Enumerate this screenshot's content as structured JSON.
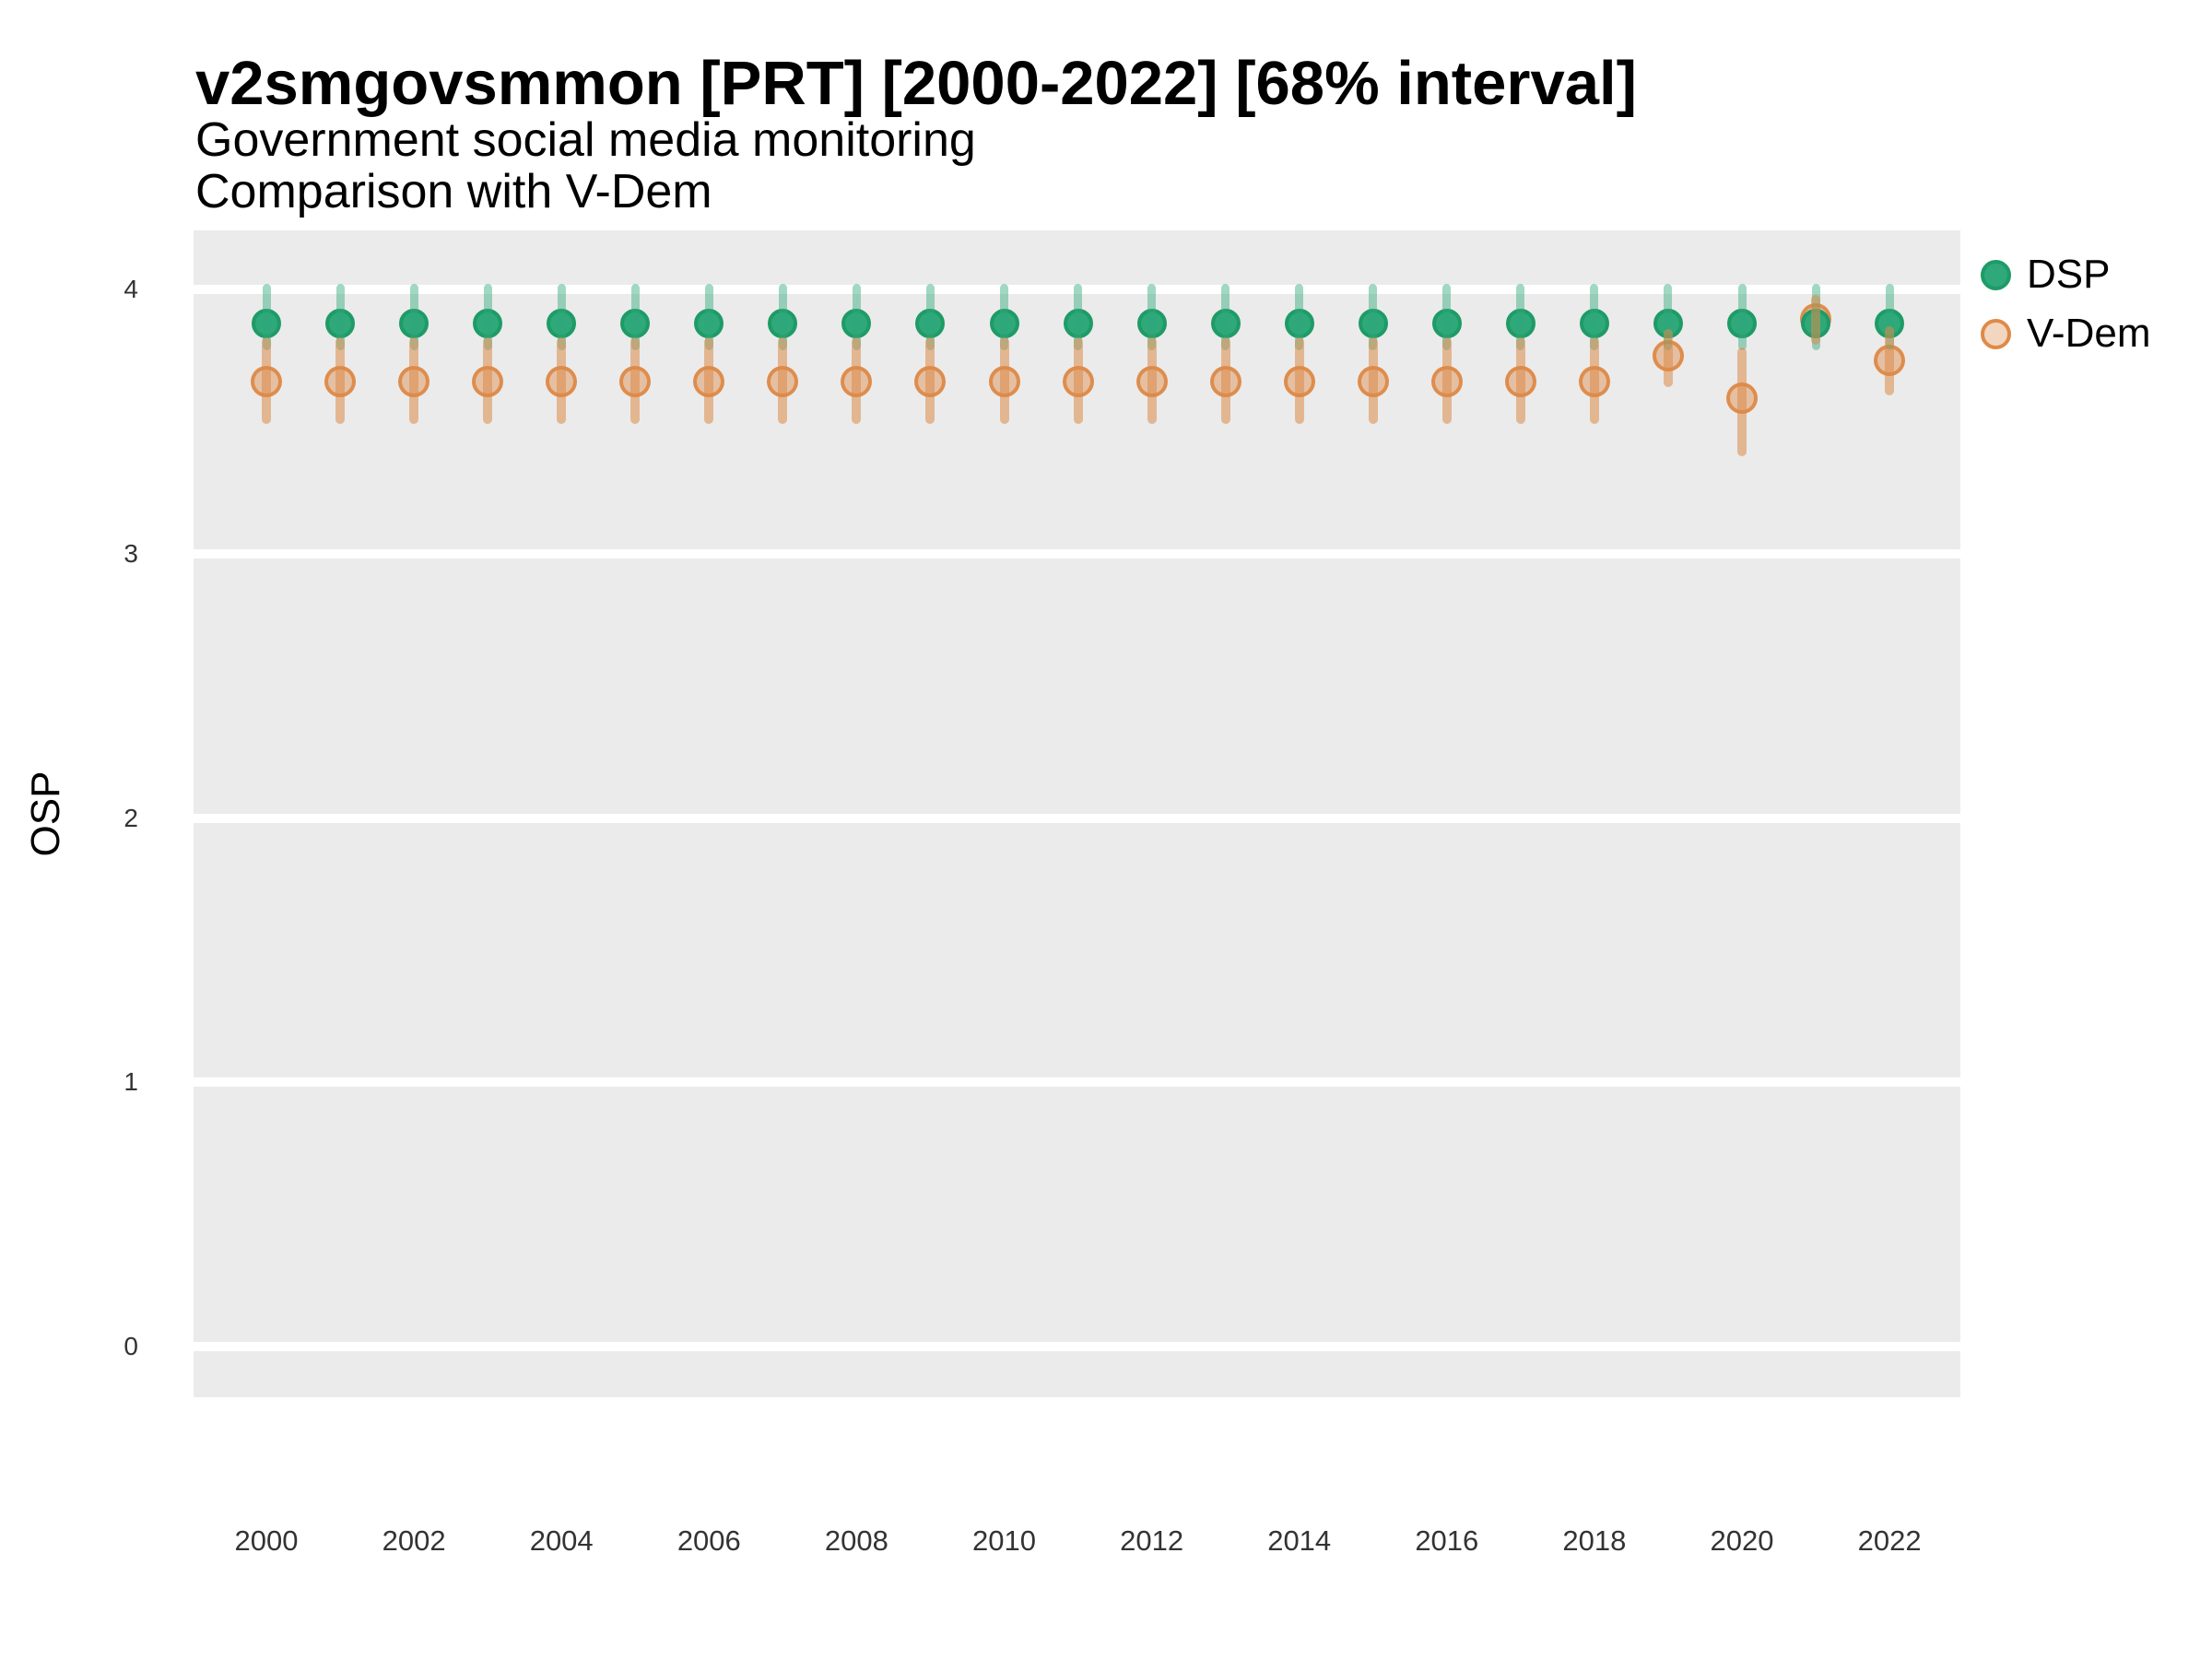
{
  "title": "v2smgovsmmon [PRT] [2000-2022] [68% interval]",
  "subtitle": "Government social media monitoring",
  "subtitle2": "Comparison with V-Dem",
  "ylabel": "OSP",
  "legend": {
    "position": "right-top",
    "items": [
      {
        "label": "DSP",
        "color": "#2fa87a"
      },
      {
        "label": "V-Dem",
        "color": "#df8a48"
      }
    ]
  },
  "colors": {
    "panel_bg": "#ebebeb",
    "gridline": "#ffffff",
    "dsp_fill": "#2fa87a",
    "dsp_ring": "#1e9b67",
    "dsp_bar": "rgba(47,168,122,0.45)",
    "vdem_base": "#dd8a49",
    "vdem_fill": "rgba(221,138,73,0.45)",
    "vdem_ring": "rgba(221,138,73,0.95)",
    "vdem_bar": "rgba(221,138,73,0.55)"
  },
  "chart_data": {
    "type": "scatter",
    "subtype": "pointrange",
    "interval": "68%",
    "title": "v2smgovsmmon [PRT] [2000-2022] [68% interval]",
    "subtitle": "Government social media monitoring",
    "subtitle2": "Comparison with V-Dem",
    "xlabel": "",
    "ylabel": "OSP",
    "grid": "on",
    "legend_position": "right-top",
    "x": [
      2000,
      2001,
      2002,
      2003,
      2004,
      2005,
      2006,
      2007,
      2008,
      2009,
      2010,
      2011,
      2012,
      2013,
      2014,
      2015,
      2016,
      2017,
      2018,
      2019,
      2020,
      2021,
      2022
    ],
    "x_tick_labels": [
      "2000",
      "2002",
      "2004",
      "2006",
      "2008",
      "2010",
      "2012",
      "2014",
      "2016",
      "2018",
      "2020",
      "2022"
    ],
    "y_ticks": [
      0,
      1,
      2,
      3,
      4
    ],
    "ylim": [
      -0.2,
      4.22
    ],
    "series": [
      {
        "name": "DSP",
        "points": [
          {
            "year": 2000,
            "est": 3.87,
            "lo": 3.77,
            "hi": 4.02
          },
          {
            "year": 2001,
            "est": 3.87,
            "lo": 3.77,
            "hi": 4.02
          },
          {
            "year": 2002,
            "est": 3.87,
            "lo": 3.77,
            "hi": 4.02
          },
          {
            "year": 2003,
            "est": 3.87,
            "lo": 3.77,
            "hi": 4.02
          },
          {
            "year": 2004,
            "est": 3.87,
            "lo": 3.77,
            "hi": 4.02
          },
          {
            "year": 2005,
            "est": 3.87,
            "lo": 3.77,
            "hi": 4.02
          },
          {
            "year": 2006,
            "est": 3.87,
            "lo": 3.77,
            "hi": 4.02
          },
          {
            "year": 2007,
            "est": 3.87,
            "lo": 3.77,
            "hi": 4.02
          },
          {
            "year": 2008,
            "est": 3.87,
            "lo": 3.77,
            "hi": 4.02
          },
          {
            "year": 2009,
            "est": 3.87,
            "lo": 3.77,
            "hi": 4.02
          },
          {
            "year": 2010,
            "est": 3.87,
            "lo": 3.77,
            "hi": 4.02
          },
          {
            "year": 2011,
            "est": 3.87,
            "lo": 3.77,
            "hi": 4.02
          },
          {
            "year": 2012,
            "est": 3.87,
            "lo": 3.77,
            "hi": 4.02
          },
          {
            "year": 2013,
            "est": 3.87,
            "lo": 3.77,
            "hi": 4.02
          },
          {
            "year": 2014,
            "est": 3.87,
            "lo": 3.77,
            "hi": 4.02
          },
          {
            "year": 2015,
            "est": 3.87,
            "lo": 3.77,
            "hi": 4.02
          },
          {
            "year": 2016,
            "est": 3.87,
            "lo": 3.77,
            "hi": 4.02
          },
          {
            "year": 2017,
            "est": 3.87,
            "lo": 3.77,
            "hi": 4.02
          },
          {
            "year": 2018,
            "est": 3.87,
            "lo": 3.77,
            "hi": 4.02
          },
          {
            "year": 2019,
            "est": 3.87,
            "lo": 3.77,
            "hi": 4.02
          },
          {
            "year": 2020,
            "est": 3.87,
            "lo": 3.77,
            "hi": 4.02
          },
          {
            "year": 2021,
            "est": 3.87,
            "lo": 3.77,
            "hi": 4.02
          },
          {
            "year": 2022,
            "est": 3.87,
            "lo": 3.77,
            "hi": 4.02
          }
        ]
      },
      {
        "name": "V-Dem",
        "points": [
          {
            "year": 2000,
            "est": 3.65,
            "lo": 3.49,
            "hi": 3.82
          },
          {
            "year": 2001,
            "est": 3.65,
            "lo": 3.49,
            "hi": 3.82
          },
          {
            "year": 2002,
            "est": 3.65,
            "lo": 3.49,
            "hi": 3.82
          },
          {
            "year": 2003,
            "est": 3.65,
            "lo": 3.49,
            "hi": 3.82
          },
          {
            "year": 2004,
            "est": 3.65,
            "lo": 3.49,
            "hi": 3.82
          },
          {
            "year": 2005,
            "est": 3.65,
            "lo": 3.49,
            "hi": 3.82
          },
          {
            "year": 2006,
            "est": 3.65,
            "lo": 3.49,
            "hi": 3.82
          },
          {
            "year": 2007,
            "est": 3.65,
            "lo": 3.49,
            "hi": 3.82
          },
          {
            "year": 2008,
            "est": 3.65,
            "lo": 3.49,
            "hi": 3.82
          },
          {
            "year": 2009,
            "est": 3.65,
            "lo": 3.49,
            "hi": 3.82
          },
          {
            "year": 2010,
            "est": 3.65,
            "lo": 3.49,
            "hi": 3.82
          },
          {
            "year": 2011,
            "est": 3.65,
            "lo": 3.49,
            "hi": 3.82
          },
          {
            "year": 2012,
            "est": 3.65,
            "lo": 3.49,
            "hi": 3.82
          },
          {
            "year": 2013,
            "est": 3.65,
            "lo": 3.49,
            "hi": 3.82
          },
          {
            "year": 2014,
            "est": 3.65,
            "lo": 3.49,
            "hi": 3.82
          },
          {
            "year": 2015,
            "est": 3.65,
            "lo": 3.49,
            "hi": 3.82
          },
          {
            "year": 2016,
            "est": 3.65,
            "lo": 3.49,
            "hi": 3.82
          },
          {
            "year": 2017,
            "est": 3.65,
            "lo": 3.49,
            "hi": 3.82
          },
          {
            "year": 2018,
            "est": 3.65,
            "lo": 3.49,
            "hi": 3.82
          },
          {
            "year": 2019,
            "est": 3.75,
            "lo": 3.63,
            "hi": 3.85
          },
          {
            "year": 2020,
            "est": 3.59,
            "lo": 3.37,
            "hi": 3.78
          },
          {
            "year": 2021,
            "est": 3.89,
            "lo": 3.79,
            "hi": 3.98
          },
          {
            "year": 2022,
            "est": 3.73,
            "lo": 3.6,
            "hi": 3.86
          }
        ]
      }
    ]
  }
}
